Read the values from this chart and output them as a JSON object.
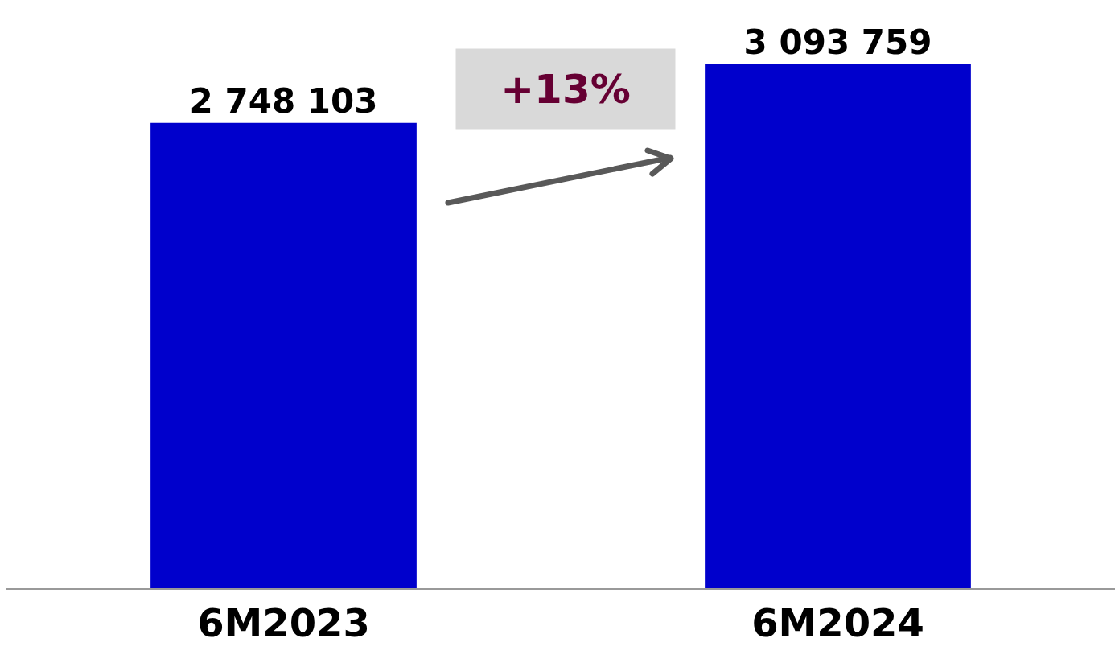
{
  "chart_data": {
    "type": "bar",
    "categories": [
      "6M2023",
      "6M2024"
    ],
    "series": [
      {
        "color": "#0000cc",
        "values": [
          2748103,
          3093759
        ],
        "value_labels": [
          "2 748 103",
          "3 093 759"
        ]
      }
    ],
    "ylim": [
      0,
      3474000
    ],
    "tick_labels": "x",
    "grid": false,
    "legend": false,
    "annotations": [
      "+13%"
    ]
  }
}
